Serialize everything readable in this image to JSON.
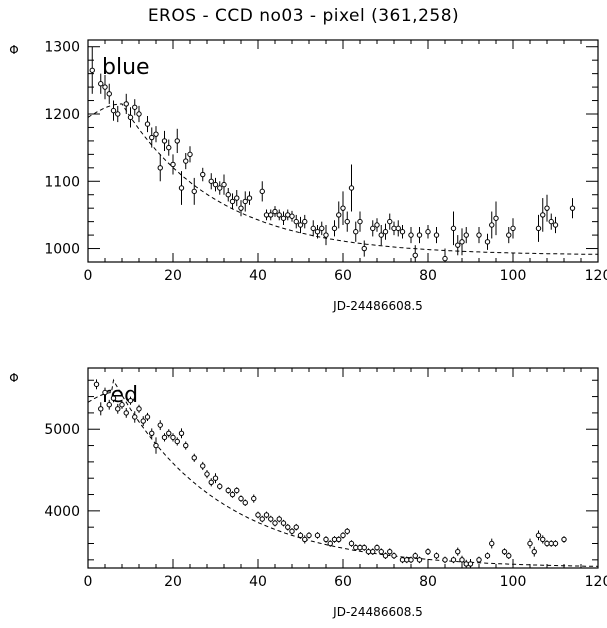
{
  "title": "EROS - CCD no03 - pixel (361,258)",
  "chart_data": [
    {
      "type": "scatter",
      "band_label": "blue",
      "ylabel": "Φ",
      "xlabel": "JD-24486608.5",
      "xlim": [
        0,
        120
      ],
      "ylim": [
        980,
        1310
      ],
      "x_ticks": [
        0,
        20,
        40,
        60,
        80,
        100,
        120
      ],
      "y_ticks": [
        1000,
        1100,
        1200,
        1300
      ],
      "model": {
        "style": "dashed",
        "peak_x": 8,
        "peak_y": 1215,
        "start_y": 1195,
        "base": 990,
        "amplitude": 225,
        "decay": 22
      },
      "series": [
        {
          "points": [
            {
              "x": 1,
              "y": 1265,
              "err": 35
            },
            {
              "x": 3,
              "y": 1245,
              "err": 15
            },
            {
              "x": 4,
              "y": 1240,
              "err": 18
            },
            {
              "x": 5,
              "y": 1230,
              "err": 15
            },
            {
              "x": 6,
              "y": 1205,
              "err": 15
            },
            {
              "x": 7,
              "y": 1200,
              "err": 12
            },
            {
              "x": 9,
              "y": 1215,
              "err": 15
            },
            {
              "x": 10,
              "y": 1195,
              "err": 15
            },
            {
              "x": 11,
              "y": 1210,
              "err": 12
            },
            {
              "x": 12,
              "y": 1200,
              "err": 12
            },
            {
              "x": 14,
              "y": 1185,
              "err": 12
            },
            {
              "x": 15,
              "y": 1165,
              "err": 15
            },
            {
              "x": 16,
              "y": 1170,
              "err": 12
            },
            {
              "x": 17,
              "y": 1120,
              "err": 20
            },
            {
              "x": 18,
              "y": 1160,
              "err": 15
            },
            {
              "x": 19,
              "y": 1150,
              "err": 12
            },
            {
              "x": 20,
              "y": 1125,
              "err": 15
            },
            {
              "x": 21,
              "y": 1160,
              "err": 18
            },
            {
              "x": 22,
              "y": 1090,
              "err": 25
            },
            {
              "x": 23,
              "y": 1130,
              "err": 12
            },
            {
              "x": 24,
              "y": 1140,
              "err": 12
            },
            {
              "x": 25,
              "y": 1085,
              "err": 20
            },
            {
              "x": 27,
              "y": 1110,
              "err": 10
            },
            {
              "x": 29,
              "y": 1100,
              "err": 12
            },
            {
              "x": 30,
              "y": 1095,
              "err": 10
            },
            {
              "x": 31,
              "y": 1090,
              "err": 10
            },
            {
              "x": 32,
              "y": 1095,
              "err": 15
            },
            {
              "x": 33,
              "y": 1080,
              "err": 10
            },
            {
              "x": 34,
              "y": 1070,
              "err": 12
            },
            {
              "x": 35,
              "y": 1075,
              "err": 12
            },
            {
              "x": 36,
              "y": 1060,
              "err": 12
            },
            {
              "x": 37,
              "y": 1070,
              "err": 15
            },
            {
              "x": 38,
              "y": 1075,
              "err": 10
            },
            {
              "x": 41,
              "y": 1085,
              "err": 15
            },
            {
              "x": 42,
              "y": 1050,
              "err": 8
            },
            {
              "x": 43,
              "y": 1050,
              "err": 8
            },
            {
              "x": 44,
              "y": 1055,
              "err": 8
            },
            {
              "x": 45,
              "y": 1050,
              "err": 8
            },
            {
              "x": 46,
              "y": 1045,
              "err": 10
            },
            {
              "x": 47,
              "y": 1050,
              "err": 8
            },
            {
              "x": 48,
              "y": 1048,
              "err": 8
            },
            {
              "x": 49,
              "y": 1040,
              "err": 10
            },
            {
              "x": 50,
              "y": 1035,
              "err": 12
            },
            {
              "x": 51,
              "y": 1040,
              "err": 10
            },
            {
              "x": 53,
              "y": 1030,
              "err": 12
            },
            {
              "x": 54,
              "y": 1025,
              "err": 10
            },
            {
              "x": 55,
              "y": 1030,
              "err": 10
            },
            {
              "x": 56,
              "y": 1020,
              "err": 15
            },
            {
              "x": 58,
              "y": 1030,
              "err": 12
            },
            {
              "x": 59,
              "y": 1050,
              "err": 20
            },
            {
              "x": 60,
              "y": 1060,
              "err": 25
            },
            {
              "x": 61,
              "y": 1040,
              "err": 15
            },
            {
              "x": 62,
              "y": 1090,
              "err": 35
            },
            {
              "x": 63,
              "y": 1025,
              "err": 15
            },
            {
              "x": 64,
              "y": 1040,
              "err": 15
            },
            {
              "x": 65,
              "y": 1000,
              "err": 12
            },
            {
              "x": 67,
              "y": 1030,
              "err": 12
            },
            {
              "x": 68,
              "y": 1035,
              "err": 10
            },
            {
              "x": 69,
              "y": 1020,
              "err": 15
            },
            {
              "x": 70,
              "y": 1025,
              "err": 12
            },
            {
              "x": 71,
              "y": 1040,
              "err": 12
            },
            {
              "x": 72,
              "y": 1030,
              "err": 10
            },
            {
              "x": 73,
              "y": 1030,
              "err": 12
            },
            {
              "x": 74,
              "y": 1025,
              "err": 10
            },
            {
              "x": 76,
              "y": 1020,
              "err": 12
            },
            {
              "x": 77,
              "y": 990,
              "err": 15
            },
            {
              "x": 78,
              "y": 1020,
              "err": 12
            },
            {
              "x": 80,
              "y": 1025,
              "err": 10
            },
            {
              "x": 82,
              "y": 1020,
              "err": 12
            },
            {
              "x": 84,
              "y": 985,
              "err": 15
            },
            {
              "x": 86,
              "y": 1030,
              "err": 25
            },
            {
              "x": 87,
              "y": 1005,
              "err": 15
            },
            {
              "x": 88,
              "y": 1010,
              "err": 20
            },
            {
              "x": 89,
              "y": 1020,
              "err": 12
            },
            {
              "x": 92,
              "y": 1020,
              "err": 12
            },
            {
              "x": 94,
              "y": 1010,
              "err": 12
            },
            {
              "x": 95,
              "y": 1035,
              "err": 20
            },
            {
              "x": 96,
              "y": 1045,
              "err": 25
            },
            {
              "x": 99,
              "y": 1020,
              "err": 12
            },
            {
              "x": 100,
              "y": 1030,
              "err": 15
            },
            {
              "x": 106,
              "y": 1030,
              "err": 20
            },
            {
              "x": 107,
              "y": 1050,
              "err": 25
            },
            {
              "x": 108,
              "y": 1060,
              "err": 20
            },
            {
              "x": 109,
              "y": 1040,
              "err": 12
            },
            {
              "x": 110,
              "y": 1035,
              "err": 12
            },
            {
              "x": 114,
              "y": 1060,
              "err": 15
            }
          ]
        }
      ]
    },
    {
      "type": "scatter",
      "band_label": "red",
      "ylabel": "Φ",
      "xlabel": "JD-24486608.5",
      "xlim": [
        0,
        120
      ],
      "ylim": [
        3300,
        5750
      ],
      "x_ticks": [
        0,
        20,
        40,
        60,
        80,
        100,
        120
      ],
      "y_ticks": [
        4000,
        5000
      ],
      "model": {
        "style": "dashed",
        "peak_x": 6,
        "peak_y": 5450,
        "start_y": 5330,
        "base": 3300,
        "amplitude": 2300,
        "decay": 24
      },
      "series": [
        {
          "points": [
            {
              "x": 2,
              "y": 5550,
              "err": 60
            },
            {
              "x": 3,
              "y": 5250,
              "err": 80
            },
            {
              "x": 4,
              "y": 5450,
              "err": 60
            },
            {
              "x": 5,
              "y": 5300,
              "err": 60
            },
            {
              "x": 6,
              "y": 5380,
              "err": 50
            },
            {
              "x": 7,
              "y": 5250,
              "err": 60
            },
            {
              "x": 8,
              "y": 5300,
              "err": 50
            },
            {
              "x": 9,
              "y": 5200,
              "err": 60
            },
            {
              "x": 10,
              "y": 5350,
              "err": 50
            },
            {
              "x": 11,
              "y": 5150,
              "err": 70
            },
            {
              "x": 12,
              "y": 5250,
              "err": 50
            },
            {
              "x": 13,
              "y": 5100,
              "err": 60
            },
            {
              "x": 14,
              "y": 5150,
              "err": 50
            },
            {
              "x": 15,
              "y": 4950,
              "err": 60
            },
            {
              "x": 16,
              "y": 4800,
              "err": 100
            },
            {
              "x": 17,
              "y": 5050,
              "err": 60
            },
            {
              "x": 18,
              "y": 4900,
              "err": 50
            },
            {
              "x": 19,
              "y": 4950,
              "err": 50
            },
            {
              "x": 20,
              "y": 4900,
              "err": 50
            },
            {
              "x": 21,
              "y": 4850,
              "err": 50
            },
            {
              "x": 22,
              "y": 4950,
              "err": 60
            },
            {
              "x": 23,
              "y": 4800,
              "err": 50
            },
            {
              "x": 25,
              "y": 4650,
              "err": 50
            },
            {
              "x": 27,
              "y": 4550,
              "err": 50
            },
            {
              "x": 28,
              "y": 4450,
              "err": 50
            },
            {
              "x": 29,
              "y": 4350,
              "err": 50
            },
            {
              "x": 30,
              "y": 4400,
              "err": 60
            },
            {
              "x": 31,
              "y": 4300,
              "err": 40
            },
            {
              "x": 33,
              "y": 4250,
              "err": 40
            },
            {
              "x": 34,
              "y": 4200,
              "err": 40
            },
            {
              "x": 35,
              "y": 4250,
              "err": 40
            },
            {
              "x": 36,
              "y": 4150,
              "err": 40
            },
            {
              "x": 37,
              "y": 4100,
              "err": 40
            },
            {
              "x": 39,
              "y": 4150,
              "err": 50
            },
            {
              "x": 40,
              "y": 3950,
              "err": 40
            },
            {
              "x": 41,
              "y": 3900,
              "err": 40
            },
            {
              "x": 42,
              "y": 3950,
              "err": 40
            },
            {
              "x": 43,
              "y": 3900,
              "err": 40
            },
            {
              "x": 44,
              "y": 3850,
              "err": 40
            },
            {
              "x": 45,
              "y": 3900,
              "err": 40
            },
            {
              "x": 46,
              "y": 3850,
              "err": 40
            },
            {
              "x": 47,
              "y": 3800,
              "err": 40
            },
            {
              "x": 48,
              "y": 3750,
              "err": 40
            },
            {
              "x": 49,
              "y": 3800,
              "err": 40
            },
            {
              "x": 50,
              "y": 3700,
              "err": 40
            },
            {
              "x": 51,
              "y": 3650,
              "err": 50
            },
            {
              "x": 52,
              "y": 3700,
              "err": 40
            },
            {
              "x": 54,
              "y": 3700,
              "err": 40
            },
            {
              "x": 56,
              "y": 3650,
              "err": 40
            },
            {
              "x": 57,
              "y": 3600,
              "err": 40
            },
            {
              "x": 58,
              "y": 3650,
              "err": 40
            },
            {
              "x": 59,
              "y": 3650,
              "err": 40
            },
            {
              "x": 60,
              "y": 3700,
              "err": 40
            },
            {
              "x": 61,
              "y": 3750,
              "err": 40
            },
            {
              "x": 62,
              "y": 3600,
              "err": 40
            },
            {
              "x": 63,
              "y": 3550,
              "err": 40
            },
            {
              "x": 64,
              "y": 3550,
              "err": 40
            },
            {
              "x": 65,
              "y": 3550,
              "err": 40
            },
            {
              "x": 66,
              "y": 3500,
              "err": 40
            },
            {
              "x": 67,
              "y": 3500,
              "err": 40
            },
            {
              "x": 68,
              "y": 3550,
              "err": 40
            },
            {
              "x": 69,
              "y": 3500,
              "err": 40
            },
            {
              "x": 70,
              "y": 3450,
              "err": 40
            },
            {
              "x": 71,
              "y": 3500,
              "err": 40
            },
            {
              "x": 72,
              "y": 3450,
              "err": 40
            },
            {
              "x": 74,
              "y": 3400,
              "err": 40
            },
            {
              "x": 75,
              "y": 3400,
              "err": 40
            },
            {
              "x": 76,
              "y": 3400,
              "err": 40
            },
            {
              "x": 77,
              "y": 3450,
              "err": 40
            },
            {
              "x": 78,
              "y": 3400,
              "err": 40
            },
            {
              "x": 80,
              "y": 3500,
              "err": 40
            },
            {
              "x": 82,
              "y": 3450,
              "err": 40
            },
            {
              "x": 84,
              "y": 3400,
              "err": 40
            },
            {
              "x": 86,
              "y": 3400,
              "err": 40
            },
            {
              "x": 87,
              "y": 3500,
              "err": 50
            },
            {
              "x": 88,
              "y": 3400,
              "err": 50
            },
            {
              "x": 89,
              "y": 3350,
              "err": 50
            },
            {
              "x": 90,
              "y": 3350,
              "err": 60
            },
            {
              "x": 92,
              "y": 3400,
              "err": 40
            },
            {
              "x": 94,
              "y": 3450,
              "err": 40
            },
            {
              "x": 95,
              "y": 3600,
              "err": 60
            },
            {
              "x": 98,
              "y": 3500,
              "err": 40
            },
            {
              "x": 99,
              "y": 3450,
              "err": 40
            },
            {
              "x": 104,
              "y": 3600,
              "err": 60
            },
            {
              "x": 105,
              "y": 3500,
              "err": 60
            },
            {
              "x": 106,
              "y": 3700,
              "err": 60
            },
            {
              "x": 107,
              "y": 3650,
              "err": 50
            },
            {
              "x": 108,
              "y": 3600,
              "err": 40
            },
            {
              "x": 109,
              "y": 3600,
              "err": 40
            },
            {
              "x": 110,
              "y": 3600,
              "err": 40
            },
            {
              "x": 112,
              "y": 3650,
              "err": 40
            }
          ]
        }
      ]
    }
  ]
}
